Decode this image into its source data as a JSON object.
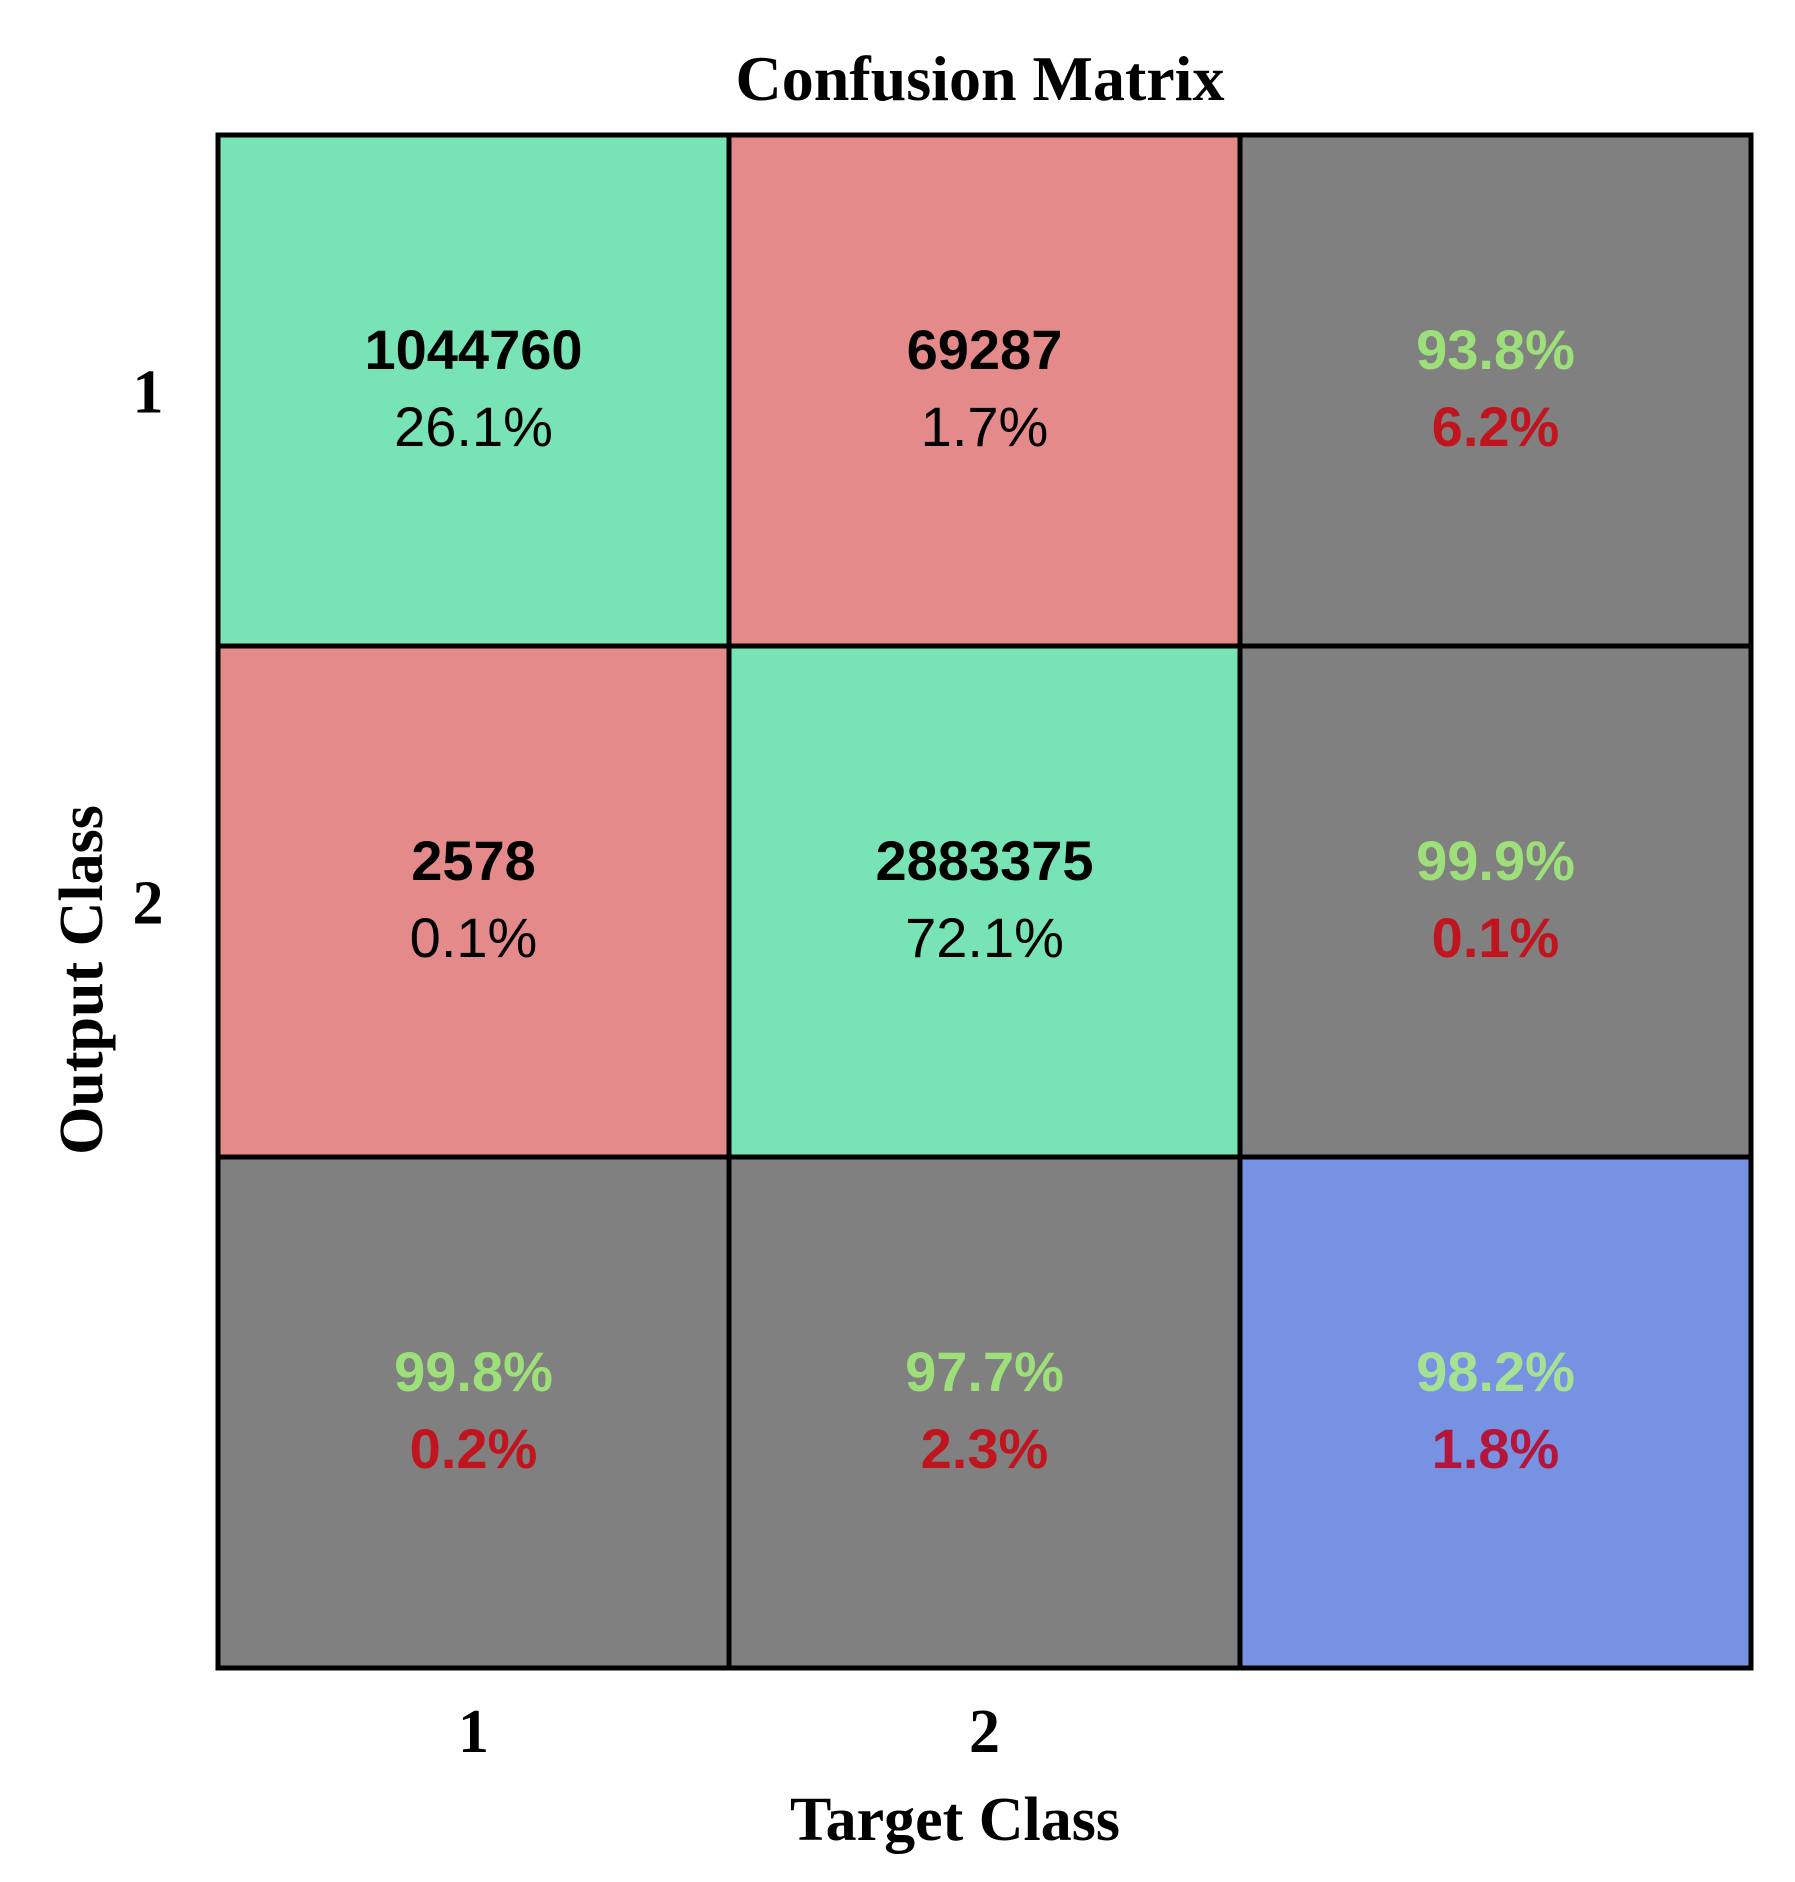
{
  "chart_data": {
    "type": "heatmap",
    "title": "Confusion Matrix",
    "xlabel": "Target Class",
    "ylabel": "Output Class",
    "x_tick_labels": [
      "1",
      "2",
      ""
    ],
    "y_tick_labels": [
      "1",
      "2",
      ""
    ],
    "colors": {
      "correct": "#78e3b4",
      "incorrect": "#e58a8a",
      "summary": "#808080",
      "overall": "#7792e3",
      "pct_good": "#9de07a",
      "pct_bad": "#c0141e",
      "pct_good_overall": "#a6e294",
      "pct_bad_overall": "#b4153a",
      "cell_text": "#000000",
      "grid_line": "#000000"
    },
    "cells": [
      {
        "row": 0,
        "col": 0,
        "kind": "correct",
        "count": "1044760",
        "percent": "26.1%"
      },
      {
        "row": 0,
        "col": 1,
        "kind": "incorrect",
        "count": "69287",
        "percent": "1.7%"
      },
      {
        "row": 0,
        "col": 2,
        "kind": "summary",
        "good": "93.8%",
        "bad": "6.2%"
      },
      {
        "row": 1,
        "col": 0,
        "kind": "incorrect",
        "count": "2578",
        "percent": "0.1%"
      },
      {
        "row": 1,
        "col": 1,
        "kind": "correct",
        "count": "2883375",
        "percent": "72.1%"
      },
      {
        "row": 1,
        "col": 2,
        "kind": "summary",
        "good": "99.9%",
        "bad": "0.1%"
      },
      {
        "row": 2,
        "col": 0,
        "kind": "summary",
        "good": "99.8%",
        "bad": "0.2%"
      },
      {
        "row": 2,
        "col": 1,
        "kind": "summary",
        "good": "97.7%",
        "bad": "2.3%"
      },
      {
        "row": 2,
        "col": 2,
        "kind": "overall",
        "good": "98.2%",
        "bad": "1.8%"
      }
    ]
  }
}
